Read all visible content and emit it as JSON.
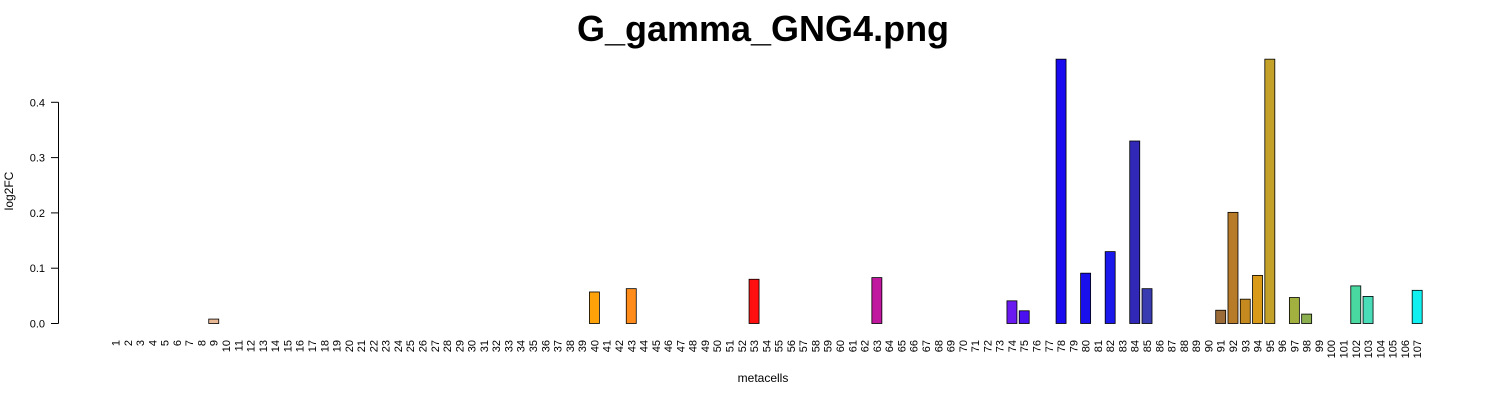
{
  "chart_data": {
    "type": "bar",
    "title": "G_gamma_GNG4.png",
    "xlabel": "metacells",
    "ylabel": "log2FC",
    "ylim": [
      0,
      0.48
    ],
    "y_ticks": [
      "0.0",
      "0.1",
      "0.2",
      "0.3",
      "0.4"
    ],
    "grid": false,
    "categories": [
      "1",
      "2",
      "3",
      "4",
      "5",
      "6",
      "7",
      "8",
      "9",
      "10",
      "11",
      "12",
      "13",
      "14",
      "15",
      "16",
      "17",
      "18",
      "19",
      "20",
      "21",
      "22",
      "23",
      "24",
      "25",
      "26",
      "27",
      "28",
      "29",
      "30",
      "31",
      "32",
      "33",
      "34",
      "35",
      "36",
      "37",
      "38",
      "39",
      "40",
      "41",
      "42",
      "43",
      "44",
      "45",
      "46",
      "47",
      "48",
      "49",
      "50",
      "51",
      "52",
      "53",
      "54",
      "55",
      "56",
      "57",
      "58",
      "59",
      "60",
      "61",
      "62",
      "63",
      "64",
      "65",
      "66",
      "67",
      "68",
      "69",
      "70",
      "71",
      "72",
      "73",
      "74",
      "75",
      "76",
      "77",
      "78",
      "79",
      "80",
      "81",
      "82",
      "83",
      "84",
      "85",
      "86",
      "87",
      "88",
      "89",
      "90",
      "91",
      "92",
      "93",
      "94",
      "95",
      "96",
      "97",
      "98",
      "99",
      "100",
      "101",
      "102",
      "103",
      "104",
      "105",
      "106",
      "107"
    ],
    "values": [
      0,
      0,
      0,
      0,
      0,
      0,
      0,
      0,
      0.008,
      0,
      0,
      0,
      0,
      0,
      0,
      0,
      0,
      0,
      0,
      0,
      0,
      0,
      0,
      0,
      0,
      0,
      0,
      0,
      0,
      0,
      0,
      0,
      0,
      0,
      0,
      0,
      0,
      0,
      0,
      0.057,
      0,
      0,
      0.063,
      0,
      0,
      0,
      0,
      0,
      0,
      0,
      0,
      0,
      0.08,
      0,
      0,
      0,
      0,
      0,
      0,
      0,
      0,
      0,
      0.083,
      0,
      0,
      0,
      0,
      0,
      0,
      0,
      0,
      0,
      0,
      0.041,
      0.023,
      0,
      0,
      0.478,
      0,
      0.091,
      0,
      0.13,
      0,
      0.33,
      0.063,
      0,
      0,
      0,
      0,
      0,
      0.024,
      0.201,
      0.044,
      0.087,
      0.478,
      0,
      0.047,
      0.017,
      0,
      0,
      0,
      0.068,
      0.049,
      0,
      0,
      0,
      0.06
    ],
    "colors": [
      "#FFFFFF",
      "#FFFFFF",
      "#FFFFFF",
      "#FFFFFF",
      "#FFFFFF",
      "#FFFFFF",
      "#FFFFFF",
      "#FFFFFF",
      "#E8B894",
      "#FFFFFF",
      "#FFFFFF",
      "#FFFFFF",
      "#FFFFFF",
      "#FFFFFF",
      "#FFFFFF",
      "#FFFFFF",
      "#FFFFFF",
      "#FFFFFF",
      "#FFFFFF",
      "#FFFFFF",
      "#FFFFFF",
      "#FFFFFF",
      "#FFFFFF",
      "#FFFFFF",
      "#FFFFFF",
      "#FFFFFF",
      "#FFFFFF",
      "#FFFFFF",
      "#FFFFFF",
      "#FFFFFF",
      "#FFFFFF",
      "#FFFFFF",
      "#FFFFFF",
      "#FFFFFF",
      "#FFFFFF",
      "#FFFFFF",
      "#FFFFFF",
      "#FFFFFF",
      "#FFFFFF",
      "#FFA20A",
      "#FFFFFF",
      "#FFFFFF",
      "#FF8C1A",
      "#FFFFFF",
      "#FFFFFF",
      "#FFFFFF",
      "#FFFFFF",
      "#FFFFFF",
      "#FFFFFF",
      "#FFFFFF",
      "#FFFFFF",
      "#FFFFFF",
      "#FF1010",
      "#FFFFFF",
      "#FFFFFF",
      "#FFFFFF",
      "#FFFFFF",
      "#FFFFFF",
      "#FFFFFF",
      "#FFFFFF",
      "#FFFFFF",
      "#FFFFFF",
      "#C0189E",
      "#FFFFFF",
      "#FFFFFF",
      "#FFFFFF",
      "#FFFFFF",
      "#FFFFFF",
      "#FFFFFF",
      "#FFFFFF",
      "#FFFFFF",
      "#FFFFFF",
      "#FFFFFF",
      "#6A1AF0",
      "#4A10F0",
      "#FFFFFF",
      "#FFFFFF",
      "#1A0AF0",
      "#FFFFFF",
      "#1A10EE",
      "#FFFFFF",
      "#1A18EA",
      "#FFFFFF",
      "#3228B8",
      "#383CB0",
      "#FFFFFF",
      "#FFFFFF",
      "#FFFFFF",
      "#FFFFFF",
      "#FFFFFF",
      "#9C6C38",
      "#B87C28",
      "#C48A20",
      "#D89A18",
      "#C4A22A",
      "#FFFFFF",
      "#A2B040",
      "#8CB050",
      "#FFFFFF",
      "#FFFFFF",
      "#FFFFFF",
      "#48D8A0",
      "#48DCB8",
      "#FFFFFF",
      "#FFFFFF",
      "#FFFFFF",
      "#10F0F0"
    ]
  }
}
